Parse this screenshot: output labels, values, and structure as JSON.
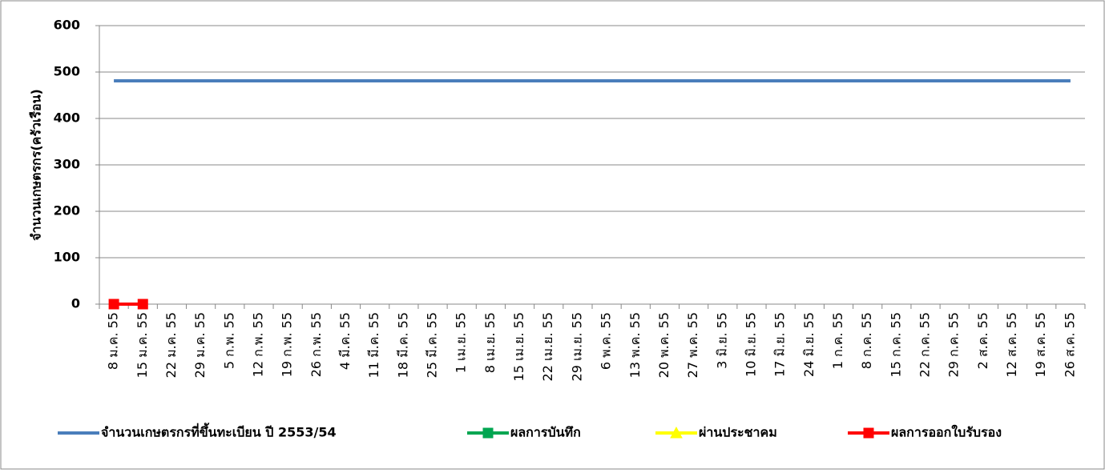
{
  "chart_data": {
    "type": "line",
    "ylabel": "จำนวนเกษตรกร(ครัวเรือน)",
    "categories": [
      "8 ม.ค. 55",
      "15 ม.ค. 55",
      "22 ม.ค. 55",
      "29 ม.ค. 55",
      "5 ก.พ. 55",
      "12 ก.พ. 55",
      "19 ก.พ. 55",
      "26 ก.พ. 55",
      "4 มี.ค. 55",
      "11 มี.ค. 55",
      "18 มี.ค. 55",
      "25 มี.ค. 55",
      "1 เม.ย. 55",
      "8 เม.ย. 55",
      "15 เม.ย. 55",
      "22 เม.ย. 55",
      "29 เม.ย. 55",
      "6 พ.ค. 55",
      "13 พ.ค. 55",
      "20 พ.ค. 55",
      "27 พ.ค. 55",
      "3 มิ.ย. 55",
      "10 มิ.ย. 55",
      "17 มิ.ย. 55",
      "24 มิ.ย. 55",
      "1 ก.ค. 55",
      "8 ก.ค. 55",
      "15 ก.ค. 55",
      "22 ก.ค. 55",
      "29 ก.ค. 55",
      "2 ส.ค. 55",
      "12 ส.ค. 55",
      "19 ส.ค. 55",
      "26 ส.ค. 55"
    ],
    "series": [
      {
        "name": "จำนวนเกษตรกรที่ขึ้นทะเบียน ปี 2553/54",
        "color": "#4a7ebb",
        "marker": "none",
        "values": [
          481,
          481,
          481,
          481,
          481,
          481,
          481,
          481,
          481,
          481,
          481,
          481,
          481,
          481,
          481,
          481,
          481,
          481,
          481,
          481,
          481,
          481,
          481,
          481,
          481,
          481,
          481,
          481,
          481,
          481,
          481,
          481,
          481,
          481
        ]
      },
      {
        "name": "ผลการบันทึก",
        "color": "#00a651",
        "marker": "square",
        "values": [
          null,
          null,
          null,
          null,
          null,
          null,
          null,
          null,
          null,
          null,
          null,
          null,
          null,
          null,
          null,
          null,
          null,
          null,
          null,
          null,
          null,
          null,
          null,
          null,
          null,
          null,
          null,
          null,
          null,
          null,
          null,
          null,
          null,
          null
        ]
      },
      {
        "name": "ผ่านประชาคม",
        "color": "#ffff00",
        "marker": "triangle",
        "values": [
          null,
          null,
          null,
          null,
          null,
          null,
          null,
          null,
          null,
          null,
          null,
          null,
          null,
          null,
          null,
          null,
          null,
          null,
          null,
          null,
          null,
          null,
          null,
          null,
          null,
          null,
          null,
          null,
          null,
          null,
          null,
          null,
          null,
          null
        ]
      },
      {
        "name": "ผลการออกใบรับรอง",
        "color": "#ff0000",
        "marker": "square",
        "values": [
          0,
          0,
          null,
          null,
          null,
          null,
          null,
          null,
          null,
          null,
          null,
          null,
          null,
          null,
          null,
          null,
          null,
          null,
          null,
          null,
          null,
          null,
          null,
          null,
          null,
          null,
          null,
          null,
          null,
          null,
          null,
          null,
          null,
          null
        ]
      }
    ],
    "ylim": [
      0,
      600
    ],
    "yticks": [
      0,
      100,
      200,
      300,
      400,
      500,
      600
    ],
    "grid": true,
    "legend": "bottom"
  }
}
